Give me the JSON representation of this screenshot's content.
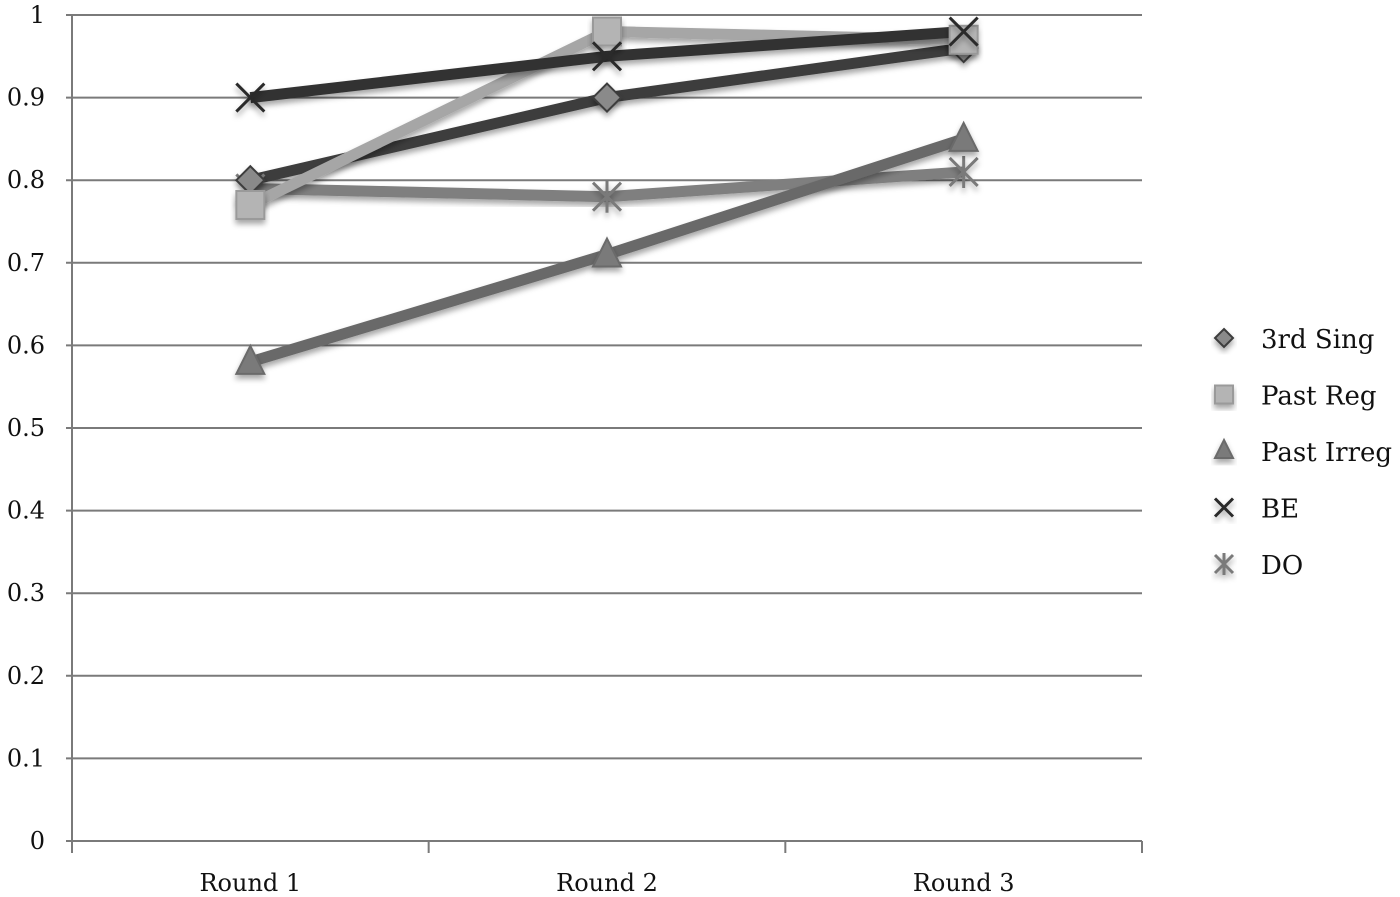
{
  "chart_data": {
    "type": "line",
    "title": "",
    "xlabel": "",
    "ylabel": "",
    "categories": [
      "Round 1",
      "Round 2",
      "Round 3"
    ],
    "ylim": [
      0,
      1
    ],
    "yticks": [
      "0",
      "0.1",
      "0.2",
      "0.3",
      "0.4",
      "0.5",
      "0.6",
      "0.7",
      "0.8",
      "0.9",
      "1"
    ],
    "grid": true,
    "legend_position": "right",
    "series": [
      {
        "name": "3rd Sing",
        "values": [
          0.8,
          0.9,
          0.96
        ],
        "color": "#3c3c3c",
        "marker": "diamond"
      },
      {
        "name": "Past Reg",
        "values": [
          0.77,
          0.98,
          0.97
        ],
        "color": "#a6a6a6",
        "marker": "square"
      },
      {
        "name": "Past Irreg",
        "values": [
          0.58,
          0.71,
          0.85
        ],
        "color": "#696969",
        "marker": "triangle"
      },
      {
        "name": "BE",
        "values": [
          0.9,
          0.95,
          0.98
        ],
        "color": "#333333",
        "marker": "x"
      },
      {
        "name": "DO",
        "values": [
          0.79,
          0.78,
          0.81
        ],
        "color": "#7f7f7f",
        "marker": "star"
      }
    ]
  }
}
